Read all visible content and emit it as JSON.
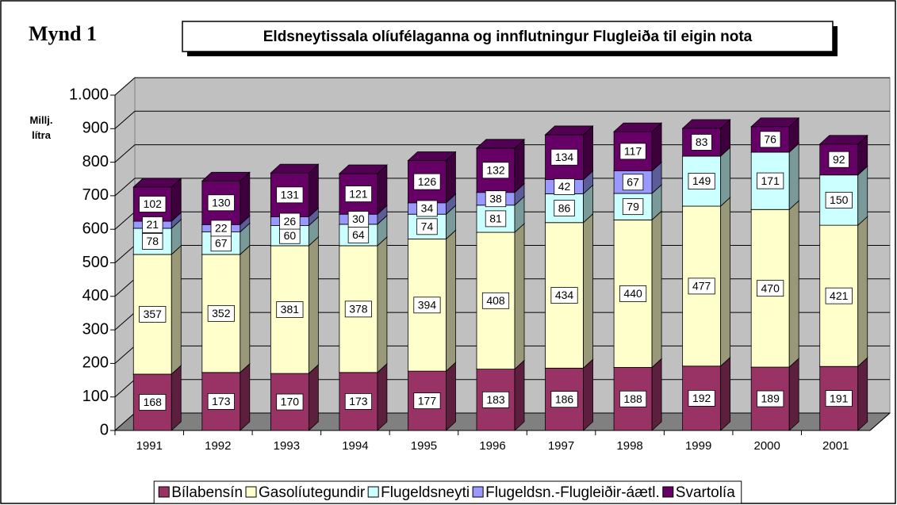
{
  "chart_data": {
    "type": "bar3d_stacked",
    "figure_label": "Mynd 1",
    "title": "Eldsneytissala olíufélaganna og innflutningur Flugleiða til eigin nota",
    "y_label": "Millj. lítra",
    "categories": [
      "1991",
      "1992",
      "1993",
      "1994",
      "1995",
      "1996",
      "1997",
      "1998",
      "1999",
      "2000",
      "2001"
    ],
    "series": [
      {
        "name": "Bílabensín",
        "color": "#993366",
        "values": [
          168,
          173,
          170,
          173,
          177,
          183,
          186,
          188,
          192,
          189,
          191
        ]
      },
      {
        "name": "Gasolíutegundir",
        "color": "#FFFFCC",
        "values": [
          357,
          352,
          381,
          378,
          394,
          408,
          434,
          440,
          477,
          470,
          421
        ]
      },
      {
        "name": "Flugeldsneyti",
        "color": "#CCFFFF",
        "values": [
          78,
          67,
          60,
          64,
          74,
          81,
          86,
          79,
          149,
          171,
          150
        ]
      },
      {
        "name": "Flugeldsn.-Flugleiðir-áætl.",
        "color": "#9999FF",
        "values": [
          21,
          22,
          26,
          30,
          34,
          38,
          42,
          67,
          null,
          null,
          null
        ]
      },
      {
        "name": "Svartolía",
        "color": "#660066",
        "values": [
          102,
          130,
          131,
          121,
          126,
          132,
          134,
          117,
          83,
          76,
          92
        ]
      }
    ],
    "ylim": [
      0,
      1000
    ],
    "yticks": [
      0,
      100,
      200,
      300,
      400,
      500,
      600,
      700,
      800,
      900,
      {
        "value": 1000,
        "label": "1.000"
      }
    ],
    "grid": true,
    "legend": "bottom"
  }
}
